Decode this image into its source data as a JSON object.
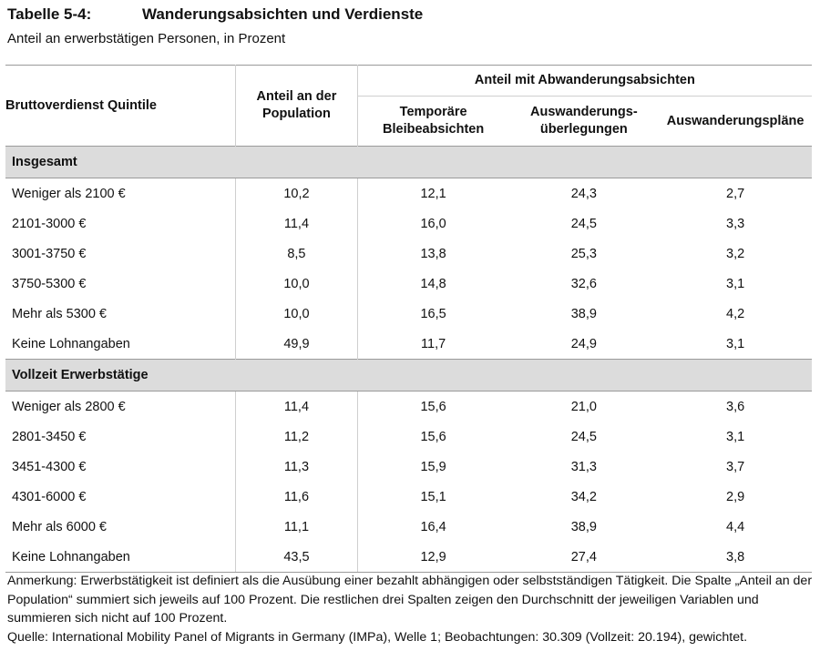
{
  "title": {
    "label": "Tabelle 5-4:",
    "text": "Wanderungsabsichten und Verdienste"
  },
  "subtitle": "Anteil an erwerbstätigen Personen, in Prozent",
  "table": {
    "headers": {
      "label_col": "Bruttoverdienst Quintile",
      "population": "Anteil an der Population",
      "group": "Anteil mit Abwanderungsabsichten",
      "c1": "Temporäre Bleibeabsichten",
      "c2": "Auswanderungs-überlegungen",
      "c3": "Auswanderungspläne"
    },
    "sections": [
      {
        "title": "Insgesamt",
        "rows": [
          {
            "label": "Weniger als 2100 €",
            "population": "10,2",
            "c1": "12,1",
            "c2": "24,3",
            "c3": "2,7"
          },
          {
            "label": "2101-3000 €",
            "population": "11,4",
            "c1": "16,0",
            "c2": "24,5",
            "c3": "3,3"
          },
          {
            "label": "3001-3750 €",
            "population": "8,5",
            "c1": "13,8",
            "c2": "25,3",
            "c3": "3,2"
          },
          {
            "label": "3750-5300 €",
            "population": "10,0",
            "c1": "14,8",
            "c2": "32,6",
            "c3": "3,1"
          },
          {
            "label": "Mehr als 5300 €",
            "population": "10,0",
            "c1": "16,5",
            "c2": "38,9",
            "c3": "4,2"
          },
          {
            "label": "Keine Lohnangaben",
            "population": "49,9",
            "c1": "11,7",
            "c2": "24,9",
            "c3": "3,1"
          }
        ]
      },
      {
        "title": "Vollzeit Erwerbstätige",
        "rows": [
          {
            "label": "Weniger als 2800 €",
            "population": "11,4",
            "c1": "15,6",
            "c2": "21,0",
            "c3": "3,6"
          },
          {
            "label": "2801-3450 €",
            "population": "11,2",
            "c1": "15,6",
            "c2": "24,5",
            "c3": "3,1"
          },
          {
            "label": "3451-4300 €",
            "population": "11,3",
            "c1": "15,9",
            "c2": "31,3",
            "c3": "3,7"
          },
          {
            "label": "4301-6000 €",
            "population": "11,6",
            "c1": "15,1",
            "c2": "34,2",
            "c3": "2,9"
          },
          {
            "label": "Mehr als 6000 €",
            "population": "11,1",
            "c1": "16,4",
            "c2": "38,9",
            "c3": "4,4"
          },
          {
            "label": "Keine Lohnangaben",
            "population": "43,5",
            "c1": "12,9",
            "c2": "27,4",
            "c3": "3,8"
          }
        ]
      }
    ]
  },
  "notes": {
    "remark": "Anmerkung: Erwerbstätigkeit ist definiert als die Ausübung einer bezahlt abhängigen oder selbstständigen Tätigkeit. Die Spalte „Anteil an der Population“ summiert sich jeweils auf 100 Prozent. Die restlichen drei Spalten zeigen den Durchschnitt der jeweiligen Variablen und summieren sich nicht auf 100 Prozent.",
    "source": "Quelle: International Mobility Panel of Migrants in Germany (IMPa), Welle 1; Beobachtungen: 30.309 (Vollzeit: 20.194), gewichtet."
  }
}
